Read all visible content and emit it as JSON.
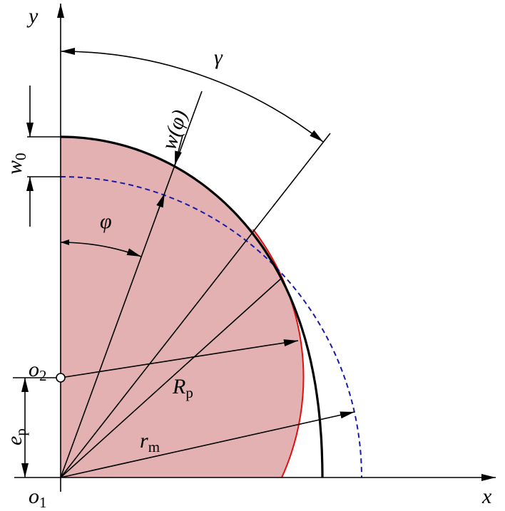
{
  "labels": {
    "y": "y",
    "x": "x",
    "gamma": "γ",
    "w_phi": "w(φ)",
    "w0": {
      "main": "w",
      "sub": "0"
    },
    "phi": "φ",
    "o2": {
      "main": "o",
      "sub": "2"
    },
    "Rp": {
      "main": "R",
      "sub": "p"
    },
    "ep": {
      "main": "e",
      "sub": "p"
    },
    "rm": {
      "main": "r",
      "sub": "m"
    },
    "o1": {
      "main": "o",
      "sub": "1"
    }
  }
}
